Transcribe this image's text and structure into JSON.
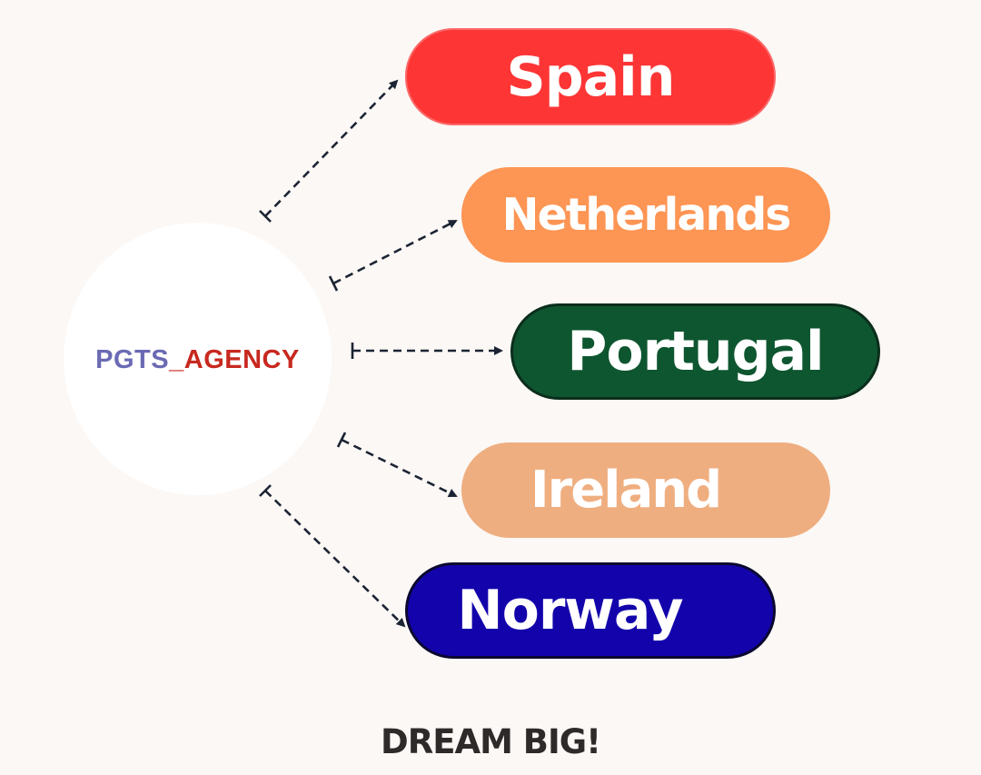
{
  "hub": {
    "label_part1": "PGTS",
    "label_part2": "_AGENCY",
    "label_color_part1": "#6a6ab4",
    "label_color_part2": "#c7291f"
  },
  "destinations": [
    {
      "label": "Spain",
      "color": "#fd3535"
    },
    {
      "label": "Netherlands",
      "color": "#fd9554"
    },
    {
      "label": "Portugal",
      "color": "#0e5630"
    },
    {
      "label": "Ireland",
      "color": "#efae80"
    },
    {
      "label": "Norway",
      "color": "#1303ab"
    }
  ],
  "footer": {
    "text": "DREAM BIG!"
  },
  "colors": {
    "background": "#fbf8f5",
    "arrow": "#1c2434"
  }
}
